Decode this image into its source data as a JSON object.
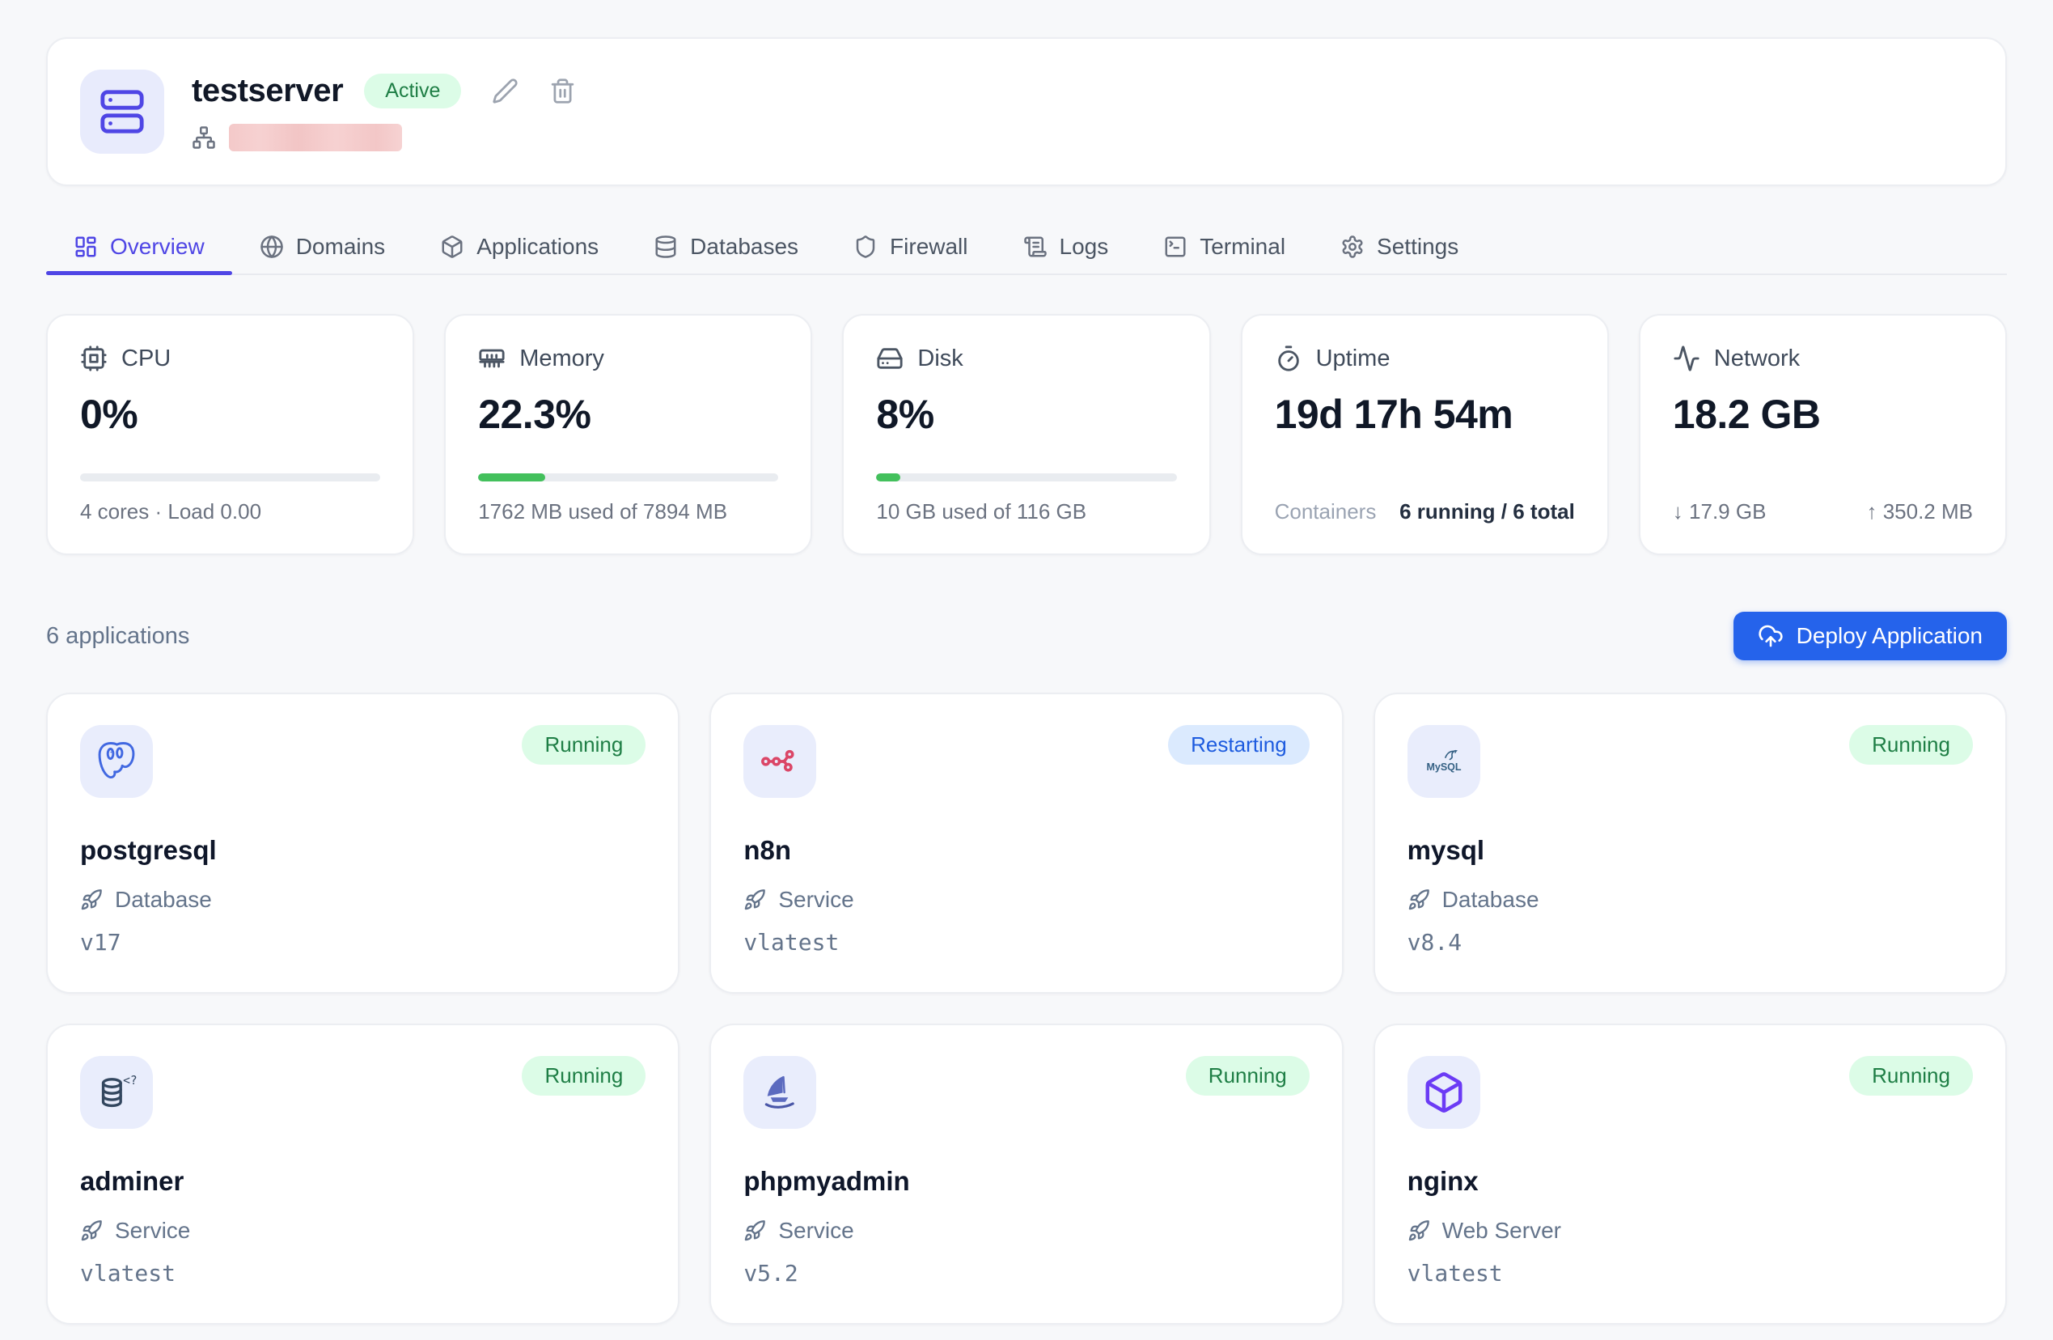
{
  "colors": {
    "accent_indigo": "#4f46e5",
    "primary_button_blue": "#2563eb",
    "progress_green": "#43c05c",
    "running_badge_bg": "#dcfce7",
    "running_badge_text": "#1e7e45",
    "restarting_badge_bg": "#dbeafe",
    "restarting_badge_text": "#1d5bdf",
    "redaction_pink": "#f3c6c6"
  },
  "server": {
    "name": "testserver",
    "status_badge": "Active",
    "icon": "server-icon",
    "ip_redacted": true
  },
  "header_actions": {
    "edit_icon": "pencil-icon",
    "delete_icon": "trash-icon",
    "address_icon": "network-icon"
  },
  "tabs": [
    {
      "label": "Overview",
      "icon": "layout-dashboard-icon",
      "active": true
    },
    {
      "label": "Domains",
      "icon": "globe-icon",
      "active": false
    },
    {
      "label": "Applications",
      "icon": "package-icon",
      "active": false
    },
    {
      "label": "Databases",
      "icon": "database-icon",
      "active": false
    },
    {
      "label": "Firewall",
      "icon": "shield-icon",
      "active": false
    },
    {
      "label": "Logs",
      "icon": "scroll-text-icon",
      "active": false
    },
    {
      "label": "Terminal",
      "icon": "terminal-icon",
      "active": false
    },
    {
      "label": "Settings",
      "icon": "gear-icon",
      "active": false
    }
  ],
  "stats": {
    "cpu": {
      "label": "CPU",
      "icon": "cpu-icon",
      "value": "0%",
      "progress_pct": 0,
      "sub": "4 cores · Load 0.00"
    },
    "memory": {
      "label": "Memory",
      "icon": "memory-stick-icon",
      "value": "22.3%",
      "progress_pct": 22.3,
      "sub": "1762 MB used of 7894 MB"
    },
    "disk": {
      "label": "Disk",
      "icon": "hard-drive-icon",
      "value": "8%",
      "progress_pct": 8,
      "sub": "10 GB used of 116 GB"
    },
    "uptime": {
      "label": "Uptime",
      "icon": "timer-icon",
      "value": "19d 17h 54m",
      "containers_label": "Containers",
      "containers_value": "6 running / 6 total"
    },
    "network": {
      "label": "Network",
      "icon": "activity-icon",
      "value": "18.2 GB",
      "download": "↓ 17.9 GB",
      "upload": "↑ 350.2 MB"
    }
  },
  "applications": {
    "count_label": "6 applications",
    "deploy_button_label": "Deploy Application",
    "deploy_button_icon": "cloud-upload-icon",
    "type_icon": "rocket-icon",
    "items": [
      {
        "name": "postgresql",
        "status": "Running",
        "type": "Database",
        "version": "v17",
        "logo": "postgresql-elephant-logo"
      },
      {
        "name": "n8n",
        "status": "Restarting",
        "type": "Service",
        "version": "vlatest",
        "logo": "n8n-nodes-logo"
      },
      {
        "name": "mysql",
        "status": "Running",
        "type": "Database",
        "version": "v8.4",
        "logo": "mysql-dolphin-logo"
      },
      {
        "name": "adminer",
        "status": "Running",
        "type": "Service",
        "version": "vlatest",
        "logo": "adminer-database-logo"
      },
      {
        "name": "phpmyadmin",
        "status": "Running",
        "type": "Service",
        "version": "v5.2",
        "logo": "phpmyadmin-sailboat-logo"
      },
      {
        "name": "nginx",
        "status": "Running",
        "type": "Web Server",
        "version": "vlatest",
        "logo": "nginx-box-logo"
      }
    ]
  }
}
